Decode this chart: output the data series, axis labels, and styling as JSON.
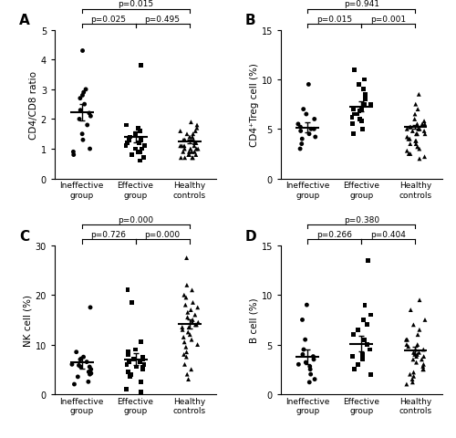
{
  "panels": [
    {
      "label": "A",
      "ylabel": "CD4/CD8 ratio",
      "ylim": [
        0,
        5
      ],
      "yticks": [
        0,
        1,
        2,
        3,
        4,
        5
      ],
      "groups": [
        "Ineffective\ngroup",
        "Effective\ngroup",
        "Healthy\ncontrols"
      ],
      "means": [
        2.23,
        1.39,
        1.25
      ],
      "sems": [
        0.28,
        0.18,
        0.05
      ],
      "markers": [
        "o",
        "s",
        "^"
      ],
      "pval_between": [
        "p=0.025",
        "p=0.495"
      ],
      "pval_top": "p=0.015",
      "data_points": [
        [
          4.3,
          3.0,
          2.9,
          2.8,
          2.7,
          2.5,
          2.3,
          2.2,
          2.1,
          2.0,
          1.8,
          1.5,
          1.3,
          1.0,
          0.9,
          0.8
        ],
        [
          3.8,
          1.8,
          1.7,
          1.6,
          1.5,
          1.4,
          1.4,
          1.3,
          1.3,
          1.2,
          1.2,
          1.1,
          1.1,
          1.0,
          1.0,
          0.9,
          0.9,
          0.8,
          0.7,
          0.6
        ],
        [
          1.9,
          1.8,
          1.7,
          1.6,
          1.6,
          1.5,
          1.5,
          1.4,
          1.4,
          1.3,
          1.3,
          1.3,
          1.2,
          1.2,
          1.2,
          1.1,
          1.1,
          1.1,
          1.1,
          1.0,
          1.0,
          1.0,
          1.0,
          0.9,
          0.9,
          0.9,
          0.9,
          0.8,
          0.8,
          0.8,
          0.7,
          0.7,
          0.7,
          0.7
        ]
      ]
    },
    {
      "label": "B",
      "ylabel": "CD4⁺Treg cell (%)",
      "ylim": [
        0,
        15
      ],
      "yticks": [
        0,
        5,
        10,
        15
      ],
      "groups": [
        "Ineffective\ngroup",
        "Effective\ngroup",
        "Healthy\ncontrols"
      ],
      "means": [
        5.16,
        7.26,
        5.21
      ],
      "sems": [
        0.51,
        0.51,
        0.2
      ],
      "markers": [
        "o",
        "s",
        "^"
      ],
      "pval_between": [
        "p=0.015",
        "p=0.001"
      ],
      "pval_top": "p=0.941",
      "data_points": [
        [
          9.5,
          7.0,
          6.5,
          6.0,
          5.5,
          5.2,
          5.0,
          5.0,
          4.8,
          4.5,
          4.2,
          4.0,
          3.5,
          3.0
        ],
        [
          11.0,
          10.0,
          9.5,
          9.0,
          8.5,
          8.0,
          7.5,
          7.5,
          7.0,
          7.0,
          6.8,
          6.5,
          6.5,
          6.2,
          6.0,
          5.8,
          5.5,
          5.0,
          4.5
        ],
        [
          8.5,
          7.5,
          7.0,
          6.5,
          6.0,
          5.8,
          5.5,
          5.5,
          5.5,
          5.2,
          5.2,
          5.0,
          5.0,
          5.0,
          4.8,
          4.8,
          4.5,
          4.5,
          4.5,
          4.2,
          4.0,
          4.0,
          3.8,
          3.8,
          3.5,
          3.5,
          3.2,
          3.0,
          2.8,
          2.5,
          2.5,
          2.2,
          2.0
        ]
      ]
    },
    {
      "label": "C",
      "ylabel": "NK cell (%)",
      "ylim": [
        0,
        30
      ],
      "yticks": [
        0,
        10,
        20,
        30
      ],
      "groups": [
        "Ineffective\ngroup",
        "Effective\ngroup",
        "Healthy\ncontrols"
      ],
      "means": [
        6.36,
        7.05,
        14.15
      ],
      "sems": [
        1.14,
        1.13,
        0.93
      ],
      "markers": [
        "o",
        "s",
        "^"
      ],
      "pval_between": [
        "p=0.726",
        "p=0.000"
      ],
      "pval_top": "p=0.000",
      "data_points": [
        [
          17.5,
          8.5,
          7.5,
          7.0,
          6.5,
          6.0,
          5.8,
          5.5,
          5.5,
          5.0,
          4.5,
          4.2,
          4.0,
          3.5,
          2.5,
          2.0
        ],
        [
          21.0,
          18.5,
          10.5,
          9.0,
          8.5,
          8.0,
          7.5,
          7.0,
          7.0,
          6.5,
          6.5,
          6.0,
          6.0,
          5.5,
          5.5,
          5.0,
          5.0,
          4.5,
          4.0,
          3.5,
          2.5,
          1.0,
          0.5
        ],
        [
          27.5,
          22.0,
          21.0,
          20.0,
          19.5,
          18.5,
          18.0,
          17.5,
          17.0,
          16.5,
          16.0,
          15.5,
          15.0,
          14.5,
          14.5,
          14.0,
          14.0,
          13.5,
          13.5,
          13.0,
          12.5,
          12.0,
          11.5,
          11.0,
          10.5,
          10.0,
          9.5,
          8.5,
          8.0,
          7.5,
          6.0,
          5.0,
          4.0,
          3.0
        ]
      ]
    },
    {
      "label": "D",
      "ylabel": "B cell (%)",
      "ylim": [
        0,
        15
      ],
      "yticks": [
        0,
        5,
        10,
        15
      ],
      "groups": [
        "Ineffective\ngroup",
        "Effective\ngroup",
        "Healthy\ncontrols"
      ],
      "means": [
        3.77,
        5.08,
        4.4
      ],
      "sems": [
        0.73,
        0.79,
        0.34
      ],
      "markers": [
        "o",
        "s",
        "^"
      ],
      "pval_between": [
        "p=0.266",
        "p=0.404"
      ],
      "pval_top": "p=0.380",
      "data_points": [
        [
          9.0,
          7.5,
          5.5,
          4.5,
          4.0,
          3.8,
          3.5,
          3.2,
          3.0,
          2.8,
          2.5,
          2.0,
          1.5,
          1.2
        ],
        [
          13.5,
          9.0,
          8.0,
          7.5,
          7.0,
          6.5,
          6.0,
          5.5,
          5.0,
          4.5,
          4.0,
          3.8,
          3.5,
          3.0,
          2.5,
          2.0
        ],
        [
          9.5,
          8.5,
          7.5,
          7.0,
          6.5,
          6.0,
          5.5,
          5.5,
          5.0,
          5.0,
          4.8,
          4.5,
          4.5,
          4.2,
          4.2,
          4.0,
          4.0,
          3.8,
          3.8,
          3.5,
          3.5,
          3.2,
          3.0,
          2.8,
          2.5,
          2.5,
          2.2,
          2.0,
          1.8,
          1.5,
          1.2,
          1.0
        ]
      ]
    }
  ],
  "background_color": "#ffffff",
  "dot_color": "black",
  "marker_size": 3.5,
  "line_color": "black",
  "error_color": "black",
  "fontsize": 7,
  "tick_fontsize": 7,
  "label_fontsize": 7.5
}
